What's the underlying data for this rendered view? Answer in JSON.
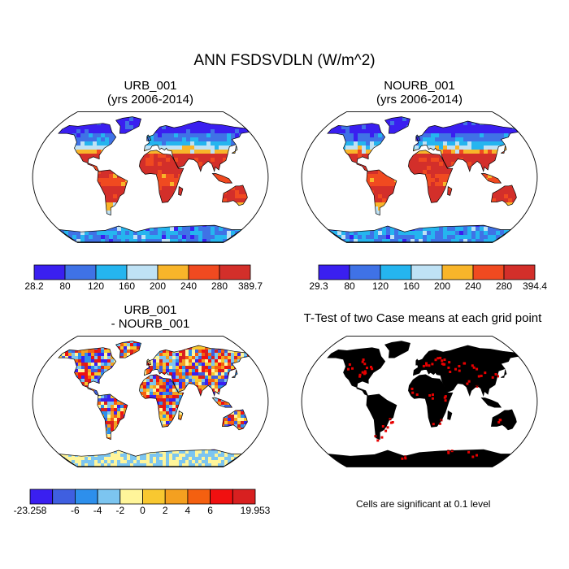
{
  "figure": {
    "title": "ANN FSDSVDLN (W/m^2)"
  },
  "chart_data": [
    {
      "type": "heatmap",
      "panel": "top-left",
      "title": "URB_001",
      "subtitle": "(yrs 2006-2014)",
      "colorbar": {
        "labels": [
          "28.2",
          "80",
          "120",
          "160",
          "200",
          "240",
          "280",
          "389.7"
        ],
        "min": 28.2,
        "max": 389.7,
        "levels": [
          80,
          120,
          160,
          200,
          240,
          280
        ],
        "colors": [
          "#3a1ff0",
          "#3f72e6",
          "#25b5ef",
          "#bfe2f5",
          "#f8b52a",
          "#f04a20",
          "#d32f2a"
        ]
      }
    },
    {
      "type": "heatmap",
      "panel": "top-right",
      "title": "NOURB_001",
      "subtitle": "(yrs 2006-2014)",
      "colorbar": {
        "labels": [
          "29.3",
          "80",
          "120",
          "160",
          "200",
          "240",
          "280",
          "394.4"
        ],
        "min": 29.3,
        "max": 394.4,
        "levels": [
          80,
          120,
          160,
          200,
          240,
          280
        ],
        "colors": [
          "#3a1ff0",
          "#3f72e6",
          "#25b5ef",
          "#bfe2f5",
          "#f8b52a",
          "#f04a20",
          "#d32f2a"
        ]
      }
    },
    {
      "type": "heatmap",
      "panel": "bottom-left",
      "title": "URB_001",
      "subtitle": "- NOURB_001",
      "colorbar": {
        "labels": [
          "-23.258",
          "",
          "-6",
          "-4",
          "-2",
          "0",
          "2",
          "4",
          "6",
          "",
          "19.953"
        ],
        "min": -23.258,
        "max": 19.953,
        "levels": [
          -6,
          -4,
          -2,
          0,
          2,
          4,
          6
        ],
        "colors": [
          "#3a1ff0",
          "#3f5fe0",
          "#2d8fec",
          "#7cc5f0",
          "#fff59a",
          "#f8c830",
          "#f4a020",
          "#f46010",
          "#f01010",
          "#d82020"
        ]
      }
    },
    {
      "type": "heatmap",
      "panel": "bottom-right",
      "title": "T-Test of two Case means at each grid point",
      "note": "Cells are significant at 0.1 level",
      "significant_color": "#e60000"
    }
  ]
}
